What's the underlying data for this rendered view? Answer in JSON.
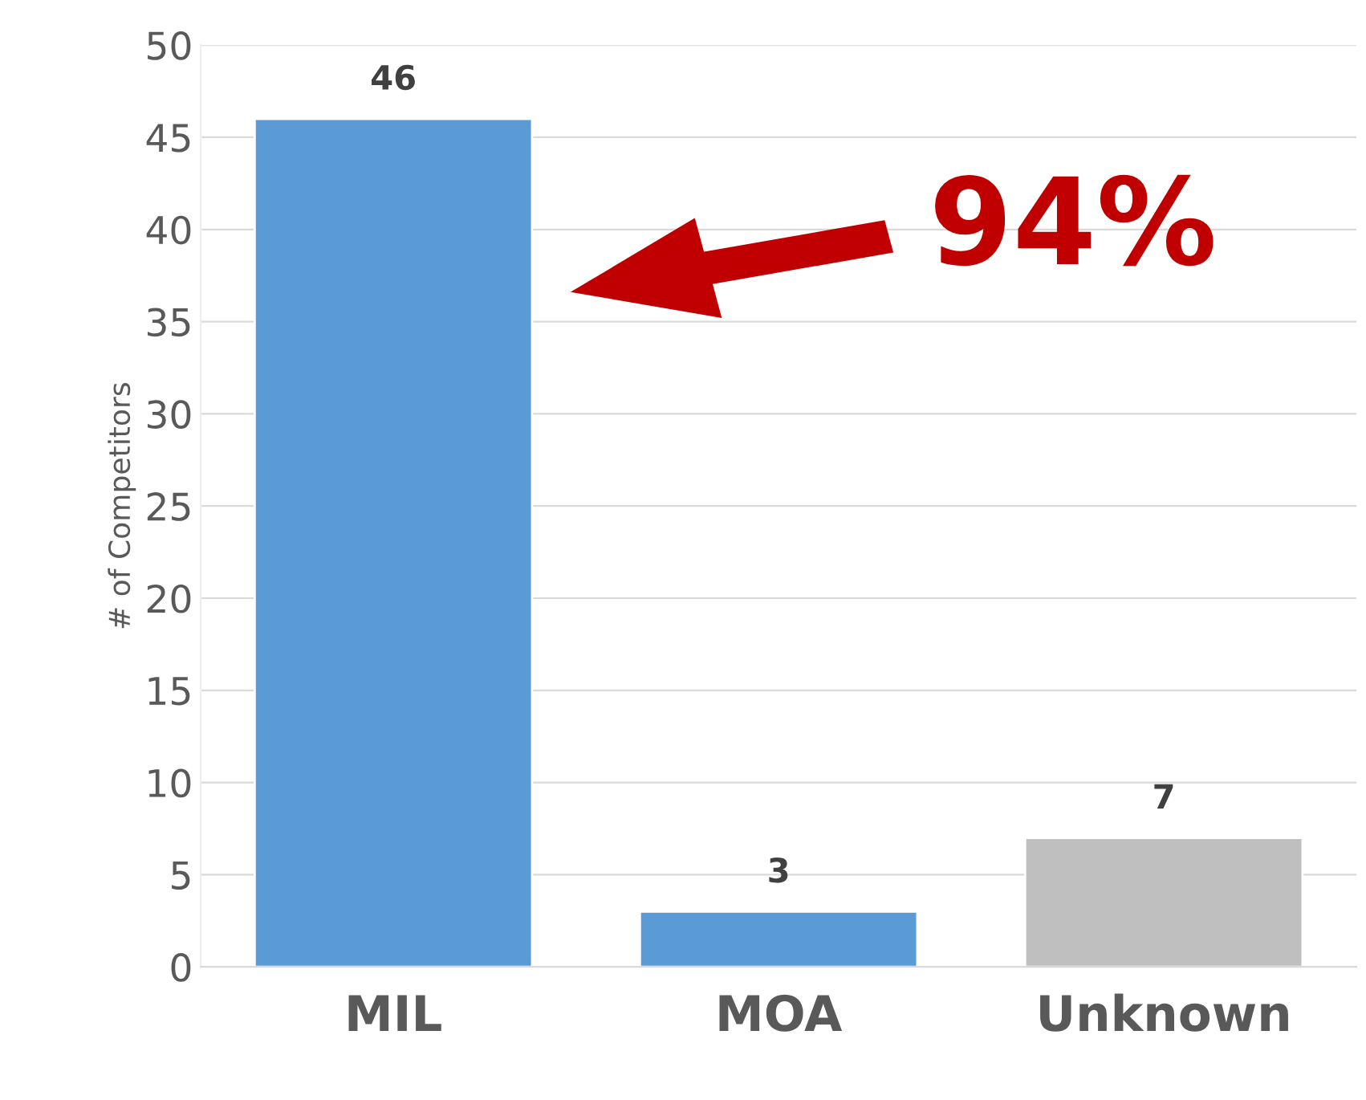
{
  "chart_data": {
    "type": "bar",
    "ylabel": "# of Competitors",
    "categories": [
      "MIL",
      "MOA",
      "Unknown"
    ],
    "values": [
      46,
      3,
      7
    ],
    "colors": [
      "#5b9bd5",
      "#5b9bd5",
      "#bfbfbf"
    ],
    "ylim": [
      0,
      50
    ],
    "yticks": [
      0,
      5,
      10,
      15,
      20,
      25,
      30,
      35,
      40,
      45,
      50
    ],
    "grid": "y",
    "data_labels": true,
    "legend": false,
    "annotations": [
      "94%"
    ]
  }
}
